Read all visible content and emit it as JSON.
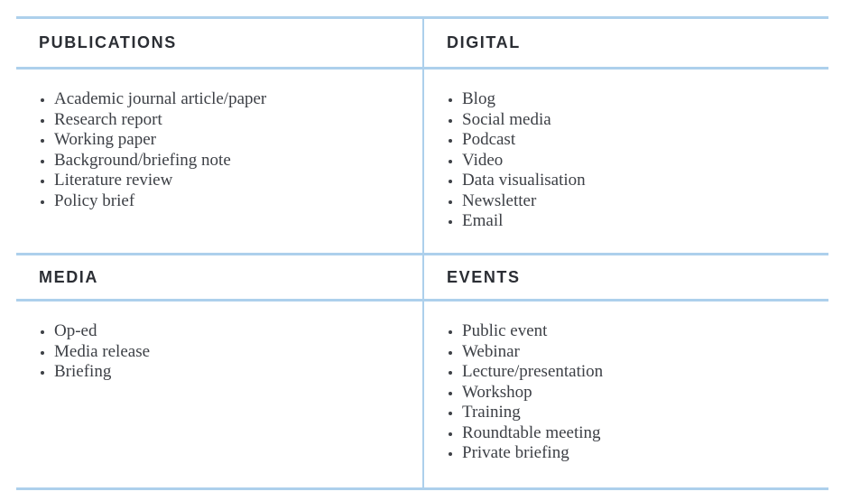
{
  "page": {
    "background": "#ffffff",
    "line_color": "#add0ec",
    "heading_color": "#2b2e34",
    "text_color": "#3d4046",
    "bullet_icon": "dot"
  },
  "sections": [
    {
      "id": "publications",
      "title": "PUBLICATIONS",
      "items": [
        "Academic journal article/paper",
        "Research report",
        "Working paper",
        "Background/briefing note",
        "Literature review",
        "Policy brief"
      ]
    },
    {
      "id": "digital",
      "title": "DIGITAL",
      "items": [
        "Blog",
        "Social media",
        "Podcast",
        "Video",
        "Data visualisation",
        "Newsletter",
        "Email"
      ]
    },
    {
      "id": "media",
      "title": "MEDIA",
      "items": [
        "Op-ed",
        "Media release",
        "Briefing"
      ]
    },
    {
      "id": "events",
      "title": "EVENTS",
      "items": [
        "Public event",
        "Webinar",
        "Lecture/presentation",
        "Workshop",
        "Training",
        "Roundtable meeting",
        "Private briefing"
      ]
    }
  ]
}
